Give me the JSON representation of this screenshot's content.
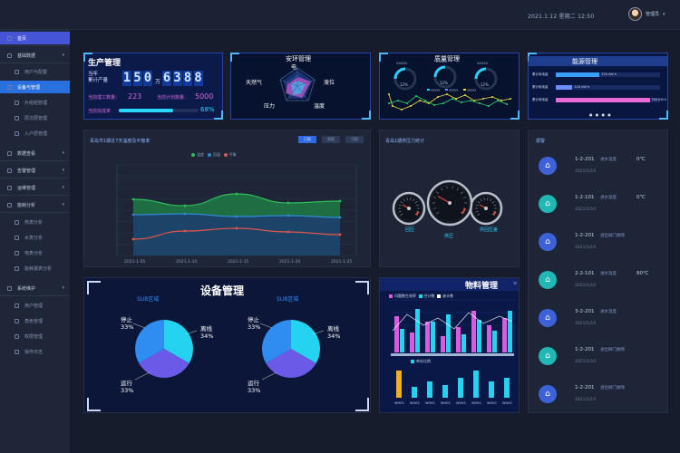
{
  "topbar": {
    "date": "2021.1.12  星期二  12:50",
    "username": "管理员",
    "dropdown_icon": "chevron-down-icon"
  },
  "sidebar": {
    "items": [
      {
        "label": "首页",
        "kind": "active"
      },
      {
        "label": "基础数据",
        "kind": "group"
      },
      {
        "label": "用户与配置",
        "kind": "sub"
      },
      {
        "label": "设备与管理",
        "kind": "subactive"
      },
      {
        "label": "片组组管理",
        "kind": "sub"
      },
      {
        "label": "层次层管理",
        "kind": "sub"
      },
      {
        "label": "入户层管理",
        "kind": "sub"
      },
      {
        "label": "数据查看",
        "kind": "group"
      },
      {
        "label": "告警管理",
        "kind": "group"
      },
      {
        "label": "运维管理",
        "kind": "group"
      },
      {
        "label": "能耗分析",
        "kind": "group"
      },
      {
        "label": "热表分析",
        "kind": "sub"
      },
      {
        "label": "水表分析",
        "kind": "sub"
      },
      {
        "label": "电表分析",
        "kind": "sub"
      },
      {
        "label": "能耗报表分析",
        "kind": "sub"
      },
      {
        "label": "系统维护",
        "kind": "group"
      },
      {
        "label": "用户管理",
        "kind": "sub"
      },
      {
        "label": "角色管理",
        "kind": "sub"
      },
      {
        "label": "权限管理",
        "kind": "sub"
      },
      {
        "label": "操作日志",
        "kind": "sub"
      }
    ]
  },
  "production": {
    "title": "生产管理",
    "annual_label_1": "当年",
    "annual_label_2": "累计产量",
    "value_wan": "150",
    "wan_unit": "万",
    "value_rest": "6388",
    "staff_label": "当前理工数量：",
    "staff_value": "223",
    "plan_label": "当前计划数量：",
    "plan_value": "5000",
    "rate_label": "当前完成率",
    "rate_value": "68%",
    "rate_fraction": 0.68
  },
  "safety": {
    "title": "安环管理",
    "labels": [
      "电",
      "液位",
      "温度",
      "压力",
      "天然气"
    ]
  },
  "quality": {
    "title": "质量管理",
    "gauges": [
      "12%",
      "12%",
      "12%"
    ],
    "legend": [
      "XXXXX",
      "XXXXX",
      "XXXXX"
    ]
  },
  "energy": {
    "title": "能源管理",
    "rows": [
      {
        "label": "累计耗电量",
        "value": "320 kW·h",
        "fraction": 0.42,
        "color": "#3aa0ff"
      },
      {
        "label": "累计耗电量",
        "value": "120 kW·h",
        "fraction": 0.16,
        "color": "#6c8cff"
      },
      {
        "label": "累计耗电量",
        "value": "350 kW·h",
        "fraction": 0.9,
        "color": "#e86bd8"
      }
    ]
  },
  "temp_panel": {
    "title": "青岛市1期近7天温度及平衡率",
    "tabs": [
      "日报",
      "周报",
      "月报"
    ],
    "legend": [
      "温度",
      "回温",
      "平衡"
    ],
    "chart_data": {
      "type": "area",
      "x": [
        "2021-1-05",
        "2021-1-10",
        "2021-1-15",
        "2021-1-20",
        "2021-1-25"
      ],
      "series": [
        {
          "name": "温度",
          "color": "#2fbf58",
          "values": [
            62,
            55,
            68,
            58,
            60
          ]
        },
        {
          "name": "回温",
          "color": "#2f8ad6",
          "values": [
            45,
            46,
            43,
            44,
            42
          ]
        },
        {
          "name": "平衡",
          "color": "#e0554a",
          "values": [
            18,
            27,
            30,
            26,
            23
          ]
        }
      ],
      "ylim": [
        0,
        100
      ]
    }
  },
  "pressure": {
    "title": "青岛1期供压力统计",
    "gauges": [
      "回压",
      "供压",
      "供回压差"
    ]
  },
  "alarms": {
    "title": "报警",
    "rows": [
      {
        "code": "1-2-201",
        "desc": "进水温度",
        "value": "0℃",
        "date": "2021/1/10",
        "color": "#3d62d8"
      },
      {
        "code": "1-2-101",
        "desc": "进水温度",
        "value": "0℃",
        "date": "2021/1/10",
        "color": "#20b7b4"
      },
      {
        "code": "1-2-201",
        "desc": "进出阀门故障",
        "value": "",
        "date": "2021/1/10",
        "color": "#3d62d8"
      },
      {
        "code": "2-2-101",
        "desc": "进水温度",
        "value": "80℃",
        "date": "2021/1/10",
        "color": "#20b7b4"
      },
      {
        "code": "3-2-201",
        "desc": "进水温度",
        "value": "",
        "date": "2021/1/10",
        "color": "#3d62d8"
      },
      {
        "code": "1-2-201",
        "desc": "进出阀门故障",
        "value": "",
        "date": "2021/1/10",
        "color": "#20b7b4"
      },
      {
        "code": "1-2-201",
        "desc": "进出阀门故障",
        "value": "",
        "date": "2021/1/10",
        "color": "#3d62d8"
      }
    ]
  },
  "equipment": {
    "title": "设备管理",
    "left_zone": "SUB区域",
    "right_zone": "SUB区域",
    "labels": {
      "stop": "停止",
      "offline": "离线",
      "run": "运行"
    },
    "left": {
      "stop": "33%",
      "offline": "34%",
      "run": "33%"
    },
    "right": {
      "stop": "33%",
      "offline": "34%",
      "run": "33%"
    }
  },
  "material": {
    "title": "物料管理",
    "legend_top": [
      "问题数生效率",
      "空计数",
      "废计数"
    ],
    "legend_bottom": "库存比例",
    "categories": [
      "WH0S",
      "WH0S",
      "WH0S",
      "WH0S",
      "WH0S",
      "WH0S",
      "WH0S",
      "WH0S"
    ]
  }
}
